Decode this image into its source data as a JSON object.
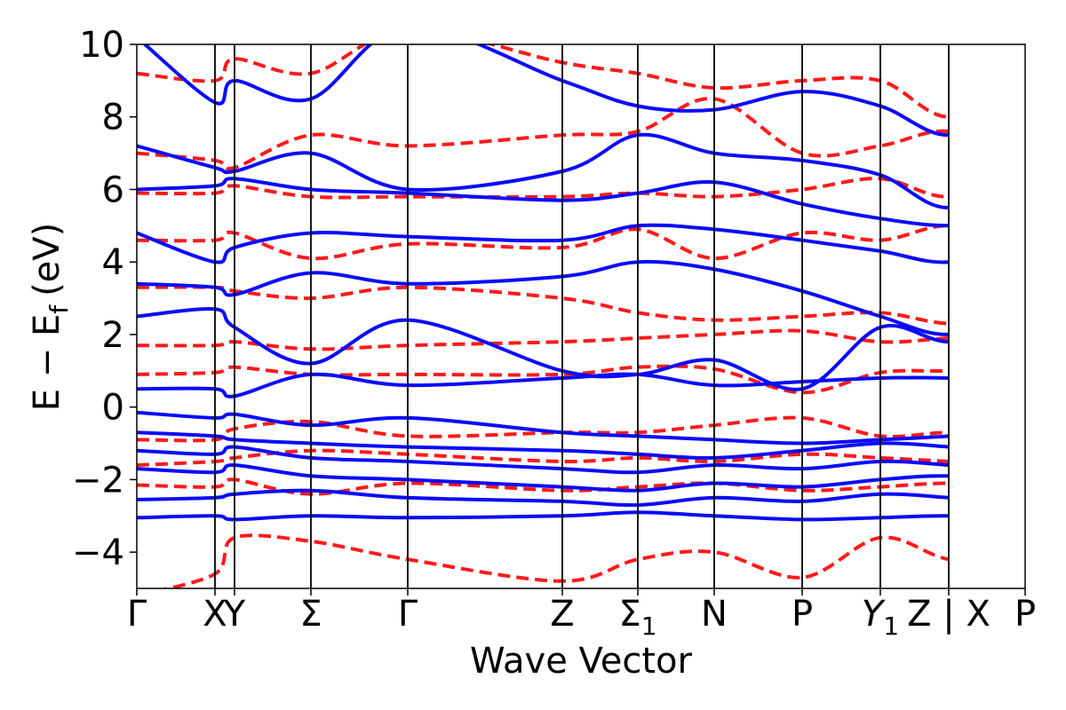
{
  "chart_data": {
    "type": "line",
    "title": "",
    "xlabel": "Wave Vector",
    "ylabel": "E − E",
    "ylabel_subscript": "f",
    "ylabel_unit": "(eV)",
    "ylim": [
      -5,
      10
    ],
    "xlim": [
      0,
      1
    ],
    "y_ticks": [
      -4,
      -2,
      0,
      2,
      4,
      6,
      8,
      10
    ],
    "y_tick_labels": [
      "−4",
      "−2",
      "0",
      "2",
      "4",
      "6",
      "8",
      "10"
    ],
    "grid": false,
    "legend": "none",
    "colors": {
      "solid": "#0a0aff",
      "dashed": "#ff1a1a",
      "axis": "#000000"
    },
    "high_symmetry_points": [
      {
        "label": "Γ",
        "x": 0.0
      },
      {
        "label": "X",
        "x": 0.088
      },
      {
        "label": "Y",
        "x": 0.11
      },
      {
        "label": "Σ",
        "x": 0.196
      },
      {
        "label": "Γ",
        "x": 0.305
      },
      {
        "label": "Z",
        "x": 0.479
      },
      {
        "label": "Σ",
        "sub": "1",
        "x": 0.564
      },
      {
        "label": "N",
        "x": 0.65
      },
      {
        "label": "P",
        "x": 0.749
      },
      {
        "label": "Y",
        "sub": "1",
        "italic": true,
        "x": 0.837
      },
      {
        "label": "Z | X",
        "x": 0.914
      },
      {
        "label": "P",
        "x": 1.0
      }
    ],
    "series": [
      {
        "style": "solid",
        "bands": [
          [
            -3.05,
            -3.0,
            -3.1,
            -3.0,
            -3.05,
            -3.0,
            -2.9,
            -3.0,
            -3.1,
            -3.05,
            -3.0,
            -3.1,
            -3.05
          ],
          [
            -2.55,
            -2.5,
            -2.4,
            -2.3,
            -2.5,
            -2.6,
            -2.7,
            -2.5,
            -2.6,
            -2.4,
            -2.5,
            -2.7,
            -2.6
          ],
          [
            -1.7,
            -1.8,
            -1.6,
            -1.9,
            -2.0,
            -2.2,
            -2.3,
            -2.1,
            -2.2,
            -2.0,
            -1.9,
            -2.1,
            -2.2
          ],
          [
            -1.2,
            -1.3,
            -1.1,
            -1.4,
            -1.5,
            -1.7,
            -1.8,
            -1.6,
            -1.7,
            -1.5,
            -1.6,
            -1.8,
            -1.7
          ],
          [
            -0.7,
            -0.8,
            -0.9,
            -1.0,
            -1.1,
            -1.2,
            -1.3,
            -1.4,
            -1.2,
            -1.0,
            -1.1,
            -1.3,
            -1.2
          ],
          [
            -0.15,
            -0.3,
            -0.2,
            -0.5,
            -0.3,
            -0.7,
            -0.8,
            -0.9,
            -1.0,
            -0.9,
            -0.8,
            -0.6,
            -0.9
          ],
          [
            0.5,
            0.5,
            0.3,
            0.9,
            0.6,
            0.8,
            0.9,
            0.6,
            0.7,
            0.8,
            0.8,
            0.7,
            0.6
          ],
          [
            2.5,
            2.7,
            2.2,
            1.2,
            2.4,
            1.0,
            0.9,
            1.3,
            0.5,
            2.2,
            1.8,
            2.2,
            1.9
          ],
          [
            3.4,
            3.3,
            3.1,
            3.7,
            3.4,
            3.6,
            4.0,
            3.8,
            3.2,
            2.5,
            2.0,
            2.6,
            2.8
          ],
          [
            4.8,
            4.0,
            4.4,
            4.8,
            4.7,
            4.6,
            5.0,
            4.9,
            4.6,
            4.3,
            4.0,
            4.6,
            4.2
          ],
          [
            6.0,
            6.1,
            6.3,
            6.0,
            5.9,
            5.7,
            5.9,
            6.2,
            5.6,
            5.2,
            5.0,
            5.2,
            5.3
          ],
          [
            7.2,
            6.6,
            6.5,
            7.0,
            6.0,
            6.5,
            7.5,
            7.0,
            6.8,
            6.4,
            5.5,
            6.6,
            6.3
          ],
          [
            10.2,
            8.4,
            9.0,
            8.5,
            10.5,
            9.0,
            8.3,
            8.2,
            8.7,
            8.3,
            7.5,
            8.4,
            8.6
          ]
        ]
      },
      {
        "style": "dashed",
        "bands": [
          [
            -5.2,
            -4.6,
            -3.6,
            -3.7,
            -4.2,
            -4.8,
            -4.2,
            -4.0,
            -4.7,
            -3.6,
            -4.2,
            -4.3,
            -3.6
          ],
          [
            -2.15,
            -2.2,
            -2.0,
            -2.4,
            -2.1,
            -2.3,
            -2.2,
            -2.1,
            -2.3,
            -2.2,
            -2.1,
            -2.2,
            -2.3
          ],
          [
            -1.6,
            -1.5,
            -1.4,
            -1.2,
            -1.3,
            -1.5,
            -1.4,
            -1.5,
            -1.3,
            -1.4,
            -1.5,
            -1.6,
            -1.5
          ],
          [
            -0.9,
            -0.9,
            -0.6,
            -0.4,
            -0.8,
            -0.7,
            -0.7,
            -0.5,
            -0.3,
            -0.8,
            -0.7,
            -0.8,
            -0.2
          ],
          [
            0.9,
            0.95,
            1.1,
            0.9,
            0.9,
            0.9,
            1.1,
            1.05,
            0.4,
            0.95,
            1.0,
            1.1,
            1.2
          ],
          [
            1.7,
            1.7,
            1.8,
            1.6,
            1.7,
            1.8,
            1.9,
            2.0,
            2.1,
            1.8,
            1.9,
            2.0,
            1.8
          ],
          [
            3.3,
            3.3,
            3.2,
            3.0,
            3.3,
            3.0,
            2.6,
            2.4,
            2.5,
            2.6,
            2.3,
            2.4,
            2.7
          ],
          [
            4.6,
            4.6,
            4.8,
            4.1,
            4.5,
            4.4,
            4.9,
            4.1,
            4.8,
            4.6,
            5.0,
            4.5,
            4.8
          ],
          [
            5.9,
            5.9,
            6.1,
            5.8,
            5.8,
            5.8,
            5.9,
            5.8,
            6.0,
            6.3,
            5.8,
            6.5,
            6.4
          ],
          [
            7.0,
            6.8,
            6.6,
            7.5,
            7.2,
            7.5,
            7.6,
            8.5,
            7.0,
            7.2,
            7.6,
            6.8,
            7.2
          ],
          [
            9.2,
            9.0,
            9.6,
            9.2,
            10.4,
            9.5,
            9.2,
            8.8,
            9.0,
            9.0,
            8.0,
            9.0,
            9.8
          ]
        ]
      }
    ]
  }
}
